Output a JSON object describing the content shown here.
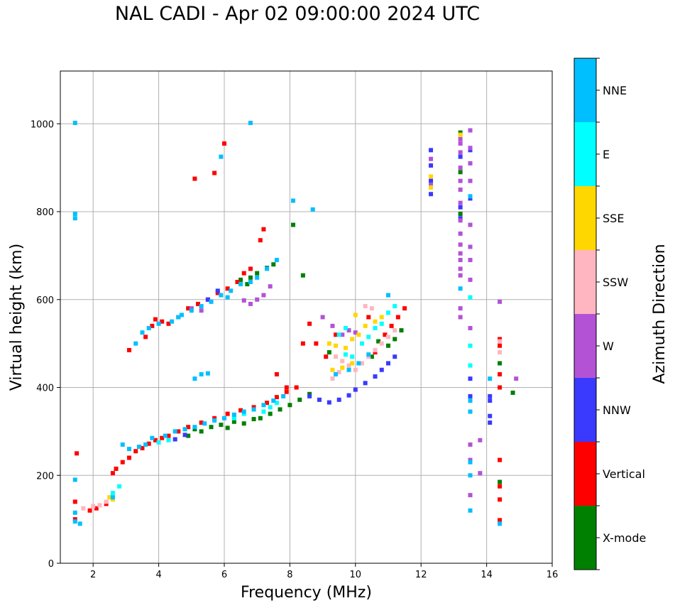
{
  "chart_data": {
    "type": "scatter",
    "title": "NAL CADI - Apr 02 09:00:00 2024 UTC",
    "xlabel": "Frequency (MHz)",
    "ylabel": "Virtual height (km)",
    "xlim": [
      1,
      16
    ],
    "ylim": [
      0,
      1120
    ],
    "xticks": [
      2,
      4,
      6,
      8,
      10,
      12,
      14,
      16
    ],
    "yticks": [
      0,
      200,
      400,
      600,
      800,
      1000
    ],
    "grid": true,
    "colorbar": {
      "label": "Azimuth Direction",
      "categories": [
        "X-mode",
        "Vertical",
        "NNW",
        "W",
        "SSW",
        "SSE",
        "E",
        "NNE"
      ],
      "colors": [
        "#008000",
        "#ff0000",
        "#3a3aff",
        "#b452d6",
        "#ffb6c1",
        "#ffd700",
        "#00ffff",
        "#00bfff"
      ]
    },
    "series": [
      {
        "name": "X-mode",
        "points": [
          [
            4.9,
            290
          ],
          [
            5.1,
            305
          ],
          [
            5.3,
            300
          ],
          [
            5.6,
            310
          ],
          [
            5.9,
            315
          ],
          [
            6.1,
            308
          ],
          [
            6.3,
            322
          ],
          [
            6.6,
            318
          ],
          [
            6.9,
            328
          ],
          [
            7.1,
            330
          ],
          [
            7.4,
            340
          ],
          [
            7.7,
            350
          ],
          [
            8.0,
            360
          ],
          [
            8.3,
            372
          ],
          [
            8.6,
            385
          ],
          [
            6.8,
            650
          ],
          [
            7.0,
            660
          ],
          [
            7.3,
            672
          ],
          [
            7.5,
            680
          ],
          [
            8.1,
            770
          ],
          [
            8.4,
            655
          ],
          [
            9.2,
            480
          ],
          [
            10.5,
            470
          ],
          [
            10.7,
            505
          ],
          [
            11.0,
            495
          ],
          [
            11.2,
            510
          ],
          [
            11.4,
            530
          ],
          [
            13.2,
            980
          ],
          [
            13.2,
            890
          ],
          [
            13.2,
            795
          ],
          [
            14.4,
            455
          ],
          [
            14.4,
            185
          ],
          [
            14.8,
            388
          ],
          [
            6.5,
            645
          ],
          [
            6.7,
            635
          ]
        ]
      },
      {
        "name": "Vertical",
        "points": [
          [
            1.45,
            140
          ],
          [
            1.45,
            100
          ],
          [
            1.5,
            250
          ],
          [
            1.9,
            120
          ],
          [
            2.1,
            125
          ],
          [
            2.4,
            135
          ],
          [
            2.6,
            205
          ],
          [
            2.7,
            215
          ],
          [
            2.9,
            230
          ],
          [
            3.1,
            240
          ],
          [
            3.3,
            255
          ],
          [
            3.5,
            262
          ],
          [
            3.7,
            272
          ],
          [
            3.9,
            280
          ],
          [
            4.1,
            285
          ],
          [
            4.3,
            290
          ],
          [
            4.6,
            300
          ],
          [
            4.9,
            310
          ],
          [
            5.3,
            320
          ],
          [
            5.7,
            330
          ],
          [
            6.1,
            340
          ],
          [
            6.5,
            348
          ],
          [
            6.9,
            355
          ],
          [
            7.3,
            365
          ],
          [
            7.6,
            378
          ],
          [
            7.9,
            390
          ],
          [
            8.2,
            400
          ],
          [
            3.1,
            485
          ],
          [
            3.6,
            515
          ],
          [
            3.8,
            540
          ],
          [
            3.9,
            555
          ],
          [
            4.1,
            550
          ],
          [
            4.3,
            545
          ],
          [
            4.6,
            560
          ],
          [
            4.9,
            580
          ],
          [
            5.2,
            590
          ],
          [
            5.5,
            600
          ],
          [
            5.8,
            615
          ],
          [
            6.1,
            625
          ],
          [
            6.4,
            640
          ],
          [
            6.6,
            660
          ],
          [
            6.8,
            670
          ],
          [
            7.1,
            735
          ],
          [
            7.2,
            760
          ],
          [
            6.0,
            955
          ],
          [
            5.7,
            888
          ],
          [
            5.1,
            875
          ],
          [
            8.4,
            500
          ],
          [
            8.6,
            545
          ],
          [
            8.8,
            500
          ],
          [
            9.1,
            470
          ],
          [
            9.4,
            520
          ],
          [
            10.4,
            560
          ],
          [
            10.6,
            480
          ],
          [
            10.9,
            520
          ],
          [
            11.1,
            540
          ],
          [
            11.3,
            560
          ],
          [
            11.5,
            580
          ],
          [
            14.4,
            510
          ],
          [
            14.4,
            495
          ],
          [
            14.4,
            430
          ],
          [
            14.4,
            400
          ],
          [
            14.4,
            235
          ],
          [
            14.4,
            175
          ],
          [
            14.4,
            145
          ],
          [
            14.4,
            98
          ],
          [
            7.9,
            400
          ],
          [
            7.6,
            430
          ]
        ]
      },
      {
        "name": "NNW",
        "points": [
          [
            8.6,
            380
          ],
          [
            8.9,
            372
          ],
          [
            9.2,
            366
          ],
          [
            9.5,
            372
          ],
          [
            9.8,
            382
          ],
          [
            10.0,
            395
          ],
          [
            10.3,
            410
          ],
          [
            10.6,
            425
          ],
          [
            10.8,
            440
          ],
          [
            11.0,
            455
          ],
          [
            11.2,
            470
          ],
          [
            12.3,
            940
          ],
          [
            12.3,
            905
          ],
          [
            12.3,
            870
          ],
          [
            12.3,
            840
          ],
          [
            13.2,
            925
          ],
          [
            13.2,
            810
          ],
          [
            13.2,
            785
          ],
          [
            13.5,
            940
          ],
          [
            13.5,
            830
          ],
          [
            13.5,
            420
          ],
          [
            13.5,
            380
          ],
          [
            14.1,
            380
          ],
          [
            14.1,
            370
          ],
          [
            14.1,
            335
          ],
          [
            14.1,
            320
          ],
          [
            5.5,
            600
          ],
          [
            5.8,
            620
          ],
          [
            4.5,
            282
          ],
          [
            4.8,
            292
          ]
        ]
      },
      {
        "name": "W",
        "points": [
          [
            12.3,
            920
          ],
          [
            12.3,
            860
          ],
          [
            13.2,
            965
          ],
          [
            13.2,
            955
          ],
          [
            13.2,
            935
          ],
          [
            13.2,
            900
          ],
          [
            13.2,
            870
          ],
          [
            13.2,
            850
          ],
          [
            13.2,
            820
          ],
          [
            13.2,
            780
          ],
          [
            13.2,
            750
          ],
          [
            13.2,
            725
          ],
          [
            13.2,
            705
          ],
          [
            13.2,
            690
          ],
          [
            13.2,
            670
          ],
          [
            13.2,
            655
          ],
          [
            13.2,
            580
          ],
          [
            13.2,
            560
          ],
          [
            13.5,
            985
          ],
          [
            13.5,
            945
          ],
          [
            13.5,
            910
          ],
          [
            13.5,
            870
          ],
          [
            13.5,
            770
          ],
          [
            13.5,
            720
          ],
          [
            13.5,
            690
          ],
          [
            13.5,
            645
          ],
          [
            13.5,
            535
          ],
          [
            13.5,
            270
          ],
          [
            13.5,
            235
          ],
          [
            13.5,
            155
          ],
          [
            13.8,
            280
          ],
          [
            13.8,
            205
          ],
          [
            14.4,
            595
          ],
          [
            14.9,
            420
          ],
          [
            9.0,
            560
          ],
          [
            9.3,
            540
          ],
          [
            9.6,
            520
          ],
          [
            6.6,
            598
          ],
          [
            6.8,
            590
          ],
          [
            7.0,
            600
          ],
          [
            7.2,
            610
          ],
          [
            7.4,
            630
          ],
          [
            5.0,
            580
          ],
          [
            5.3,
            575
          ],
          [
            9.8,
            530
          ],
          [
            10.0,
            525
          ]
        ]
      },
      {
        "name": "SSW",
        "points": [
          [
            1.7,
            125
          ],
          [
            2.0,
            130
          ],
          [
            2.2,
            132
          ],
          [
            2.4,
            140
          ],
          [
            9.4,
            470
          ],
          [
            9.6,
            460
          ],
          [
            9.8,
            450
          ],
          [
            10.0,
            440
          ],
          [
            10.2,
            455
          ],
          [
            10.4,
            470
          ],
          [
            10.6,
            485
          ],
          [
            10.8,
            500
          ],
          [
            11.0,
            515
          ],
          [
            11.2,
            530
          ],
          [
            9.3,
            420
          ],
          [
            9.5,
            435
          ],
          [
            14.4,
            505
          ],
          [
            14.4,
            480
          ],
          [
            10.3,
            585
          ],
          [
            10.5,
            580
          ]
        ]
      },
      {
        "name": "SSE",
        "points": [
          [
            2.5,
            150
          ],
          [
            2.6,
            145
          ],
          [
            12.3,
            855
          ],
          [
            12.3,
            880
          ],
          [
            13.2,
            975
          ],
          [
            9.2,
            500
          ],
          [
            9.4,
            495
          ],
          [
            9.7,
            490
          ],
          [
            9.9,
            510
          ],
          [
            10.1,
            520
          ],
          [
            10.0,
            565
          ],
          [
            10.3,
            540
          ],
          [
            10.6,
            550
          ],
          [
            10.8,
            560
          ],
          [
            9.3,
            440
          ],
          [
            9.6,
            445
          ],
          [
            9.9,
            455
          ]
        ]
      },
      {
        "name": "E",
        "points": [
          [
            2.6,
            160
          ],
          [
            2.8,
            175
          ],
          [
            10.2,
            500
          ],
          [
            10.4,
            515
          ],
          [
            10.6,
            535
          ],
          [
            10.8,
            545
          ],
          [
            11.0,
            570
          ],
          [
            11.2,
            585
          ],
          [
            9.7,
            475
          ],
          [
            9.9,
            470
          ],
          [
            7.2,
            345
          ],
          [
            7.4,
            355
          ],
          [
            7.6,
            365
          ],
          [
            6.3,
            330
          ],
          [
            6.6,
            340
          ],
          [
            4.0,
            275
          ],
          [
            4.3,
            280
          ],
          [
            13.5,
            605
          ],
          [
            13.5,
            495
          ],
          [
            13.5,
            450
          ],
          [
            9.5,
            520
          ],
          [
            9.7,
            535
          ]
        ]
      },
      {
        "name": "NNE",
        "points": [
          [
            1.45,
            1002
          ],
          [
            1.45,
            795
          ],
          [
            1.45,
            785
          ],
          [
            1.45,
            190
          ],
          [
            1.45,
            115
          ],
          [
            1.45,
            95
          ],
          [
            1.6,
            90
          ],
          [
            2.6,
            150
          ],
          [
            2.9,
            270
          ],
          [
            3.1,
            260
          ],
          [
            3.4,
            265
          ],
          [
            3.6,
            270
          ],
          [
            3.8,
            285
          ],
          [
            4.2,
            290
          ],
          [
            4.5,
            300
          ],
          [
            4.8,
            305
          ],
          [
            5.1,
            310
          ],
          [
            5.4,
            318
          ],
          [
            5.7,
            325
          ],
          [
            6.0,
            330
          ],
          [
            6.3,
            338
          ],
          [
            6.6,
            345
          ],
          [
            6.9,
            350
          ],
          [
            7.2,
            360
          ],
          [
            7.5,
            370
          ],
          [
            7.8,
            380
          ],
          [
            3.3,
            500
          ],
          [
            3.5,
            525
          ],
          [
            3.7,
            535
          ],
          [
            4.0,
            545
          ],
          [
            4.4,
            550
          ],
          [
            4.7,
            565
          ],
          [
            5.0,
            575
          ],
          [
            5.3,
            585
          ],
          [
            5.6,
            595
          ],
          [
            5.9,
            610
          ],
          [
            6.2,
            620
          ],
          [
            6.5,
            635
          ],
          [
            6.8,
            640
          ],
          [
            7.0,
            650
          ],
          [
            7.3,
            670
          ],
          [
            7.6,
            690
          ],
          [
            5.1,
            420
          ],
          [
            5.3,
            430
          ],
          [
            5.5,
            432
          ],
          [
            5.9,
            925
          ],
          [
            6.8,
            1002
          ],
          [
            8.1,
            825
          ],
          [
            8.7,
            805
          ],
          [
            11.0,
            610
          ],
          [
            9.4,
            430
          ],
          [
            9.8,
            440
          ],
          [
            10.1,
            455
          ],
          [
            10.4,
            475
          ],
          [
            13.2,
            625
          ],
          [
            13.5,
            835
          ],
          [
            13.5,
            370
          ],
          [
            13.5,
            345
          ],
          [
            13.5,
            200
          ],
          [
            13.5,
            120
          ],
          [
            13.5,
            230
          ],
          [
            14.1,
            420
          ],
          [
            14.4,
            90
          ],
          [
            4.6,
            560
          ],
          [
            6.1,
            605
          ]
        ]
      }
    ]
  }
}
